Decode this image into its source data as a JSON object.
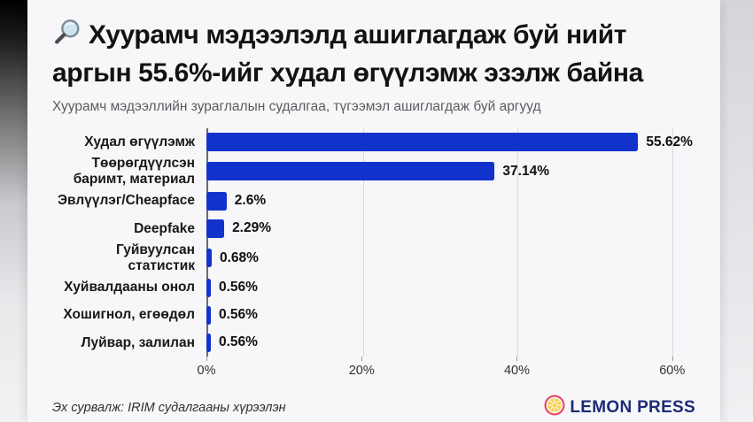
{
  "header": {
    "title": "Хуурамч мэдээлэлд ашиглагдаж буй нийт аргын 55.6%-ийг худал өгүүлэмж эзэлж байна",
    "subtitle": "Хуурамч мэдээллийн зураглалын судалгаа, түгээмэл ашиглагдаж буй аргууд"
  },
  "icons": {
    "title_icon": "magnifying-glass",
    "brand_icon": "lemon-slice"
  },
  "chart_data": {
    "type": "bar",
    "orientation": "horizontal",
    "title": "Хуурамч мэдээлэлд ашиглагдаж буй нийт аргын 55.6%-ийг худал өгүүлэмж эзэлж байна",
    "subtitle": "Хуурамч мэдээллийн зураглалын судалгаа, түгээмэл ашиглагдаж буй аргууд",
    "categories": [
      "Худал өгүүлэмж",
      "Төөрөгдүүлсэн баримт, материал",
      "Эвлүүлэг/Cheapface",
      "Deepfake",
      "Гуйвуулсан статистик",
      "Хуйвалдааны онол",
      "Хошигнол, егөөдөл",
      "Луйвар, залилан"
    ],
    "values": [
      55.62,
      37.14,
      2.6,
      2.29,
      0.68,
      0.56,
      0.56,
      0.56
    ],
    "value_labels": [
      "55.62%",
      "37.14%",
      "2.6%",
      "2.29%",
      "0.68%",
      "0.56%",
      "0.56%",
      "0.56%"
    ],
    "xlabel": "",
    "ylabel": "",
    "xlim": [
      0,
      63
    ],
    "xticks": {
      "values": [
        0,
        20,
        40,
        60
      ],
      "labels": [
        "0%",
        "20%",
        "40%",
        "60%"
      ]
    },
    "grid": true,
    "legend": false,
    "bar_color": "#1233cb",
    "axis_line_color": "#6a6a70",
    "gridline_color": "#d8d8dc"
  },
  "footer": {
    "source": "Эх сурвалж: IRIM судалгааны хүрээлэн",
    "brand": "LEMON PRESS",
    "brand_color": "#1c2b77",
    "lemon_yellow": "#f9cf45",
    "lemon_ring": "#e8476b"
  }
}
